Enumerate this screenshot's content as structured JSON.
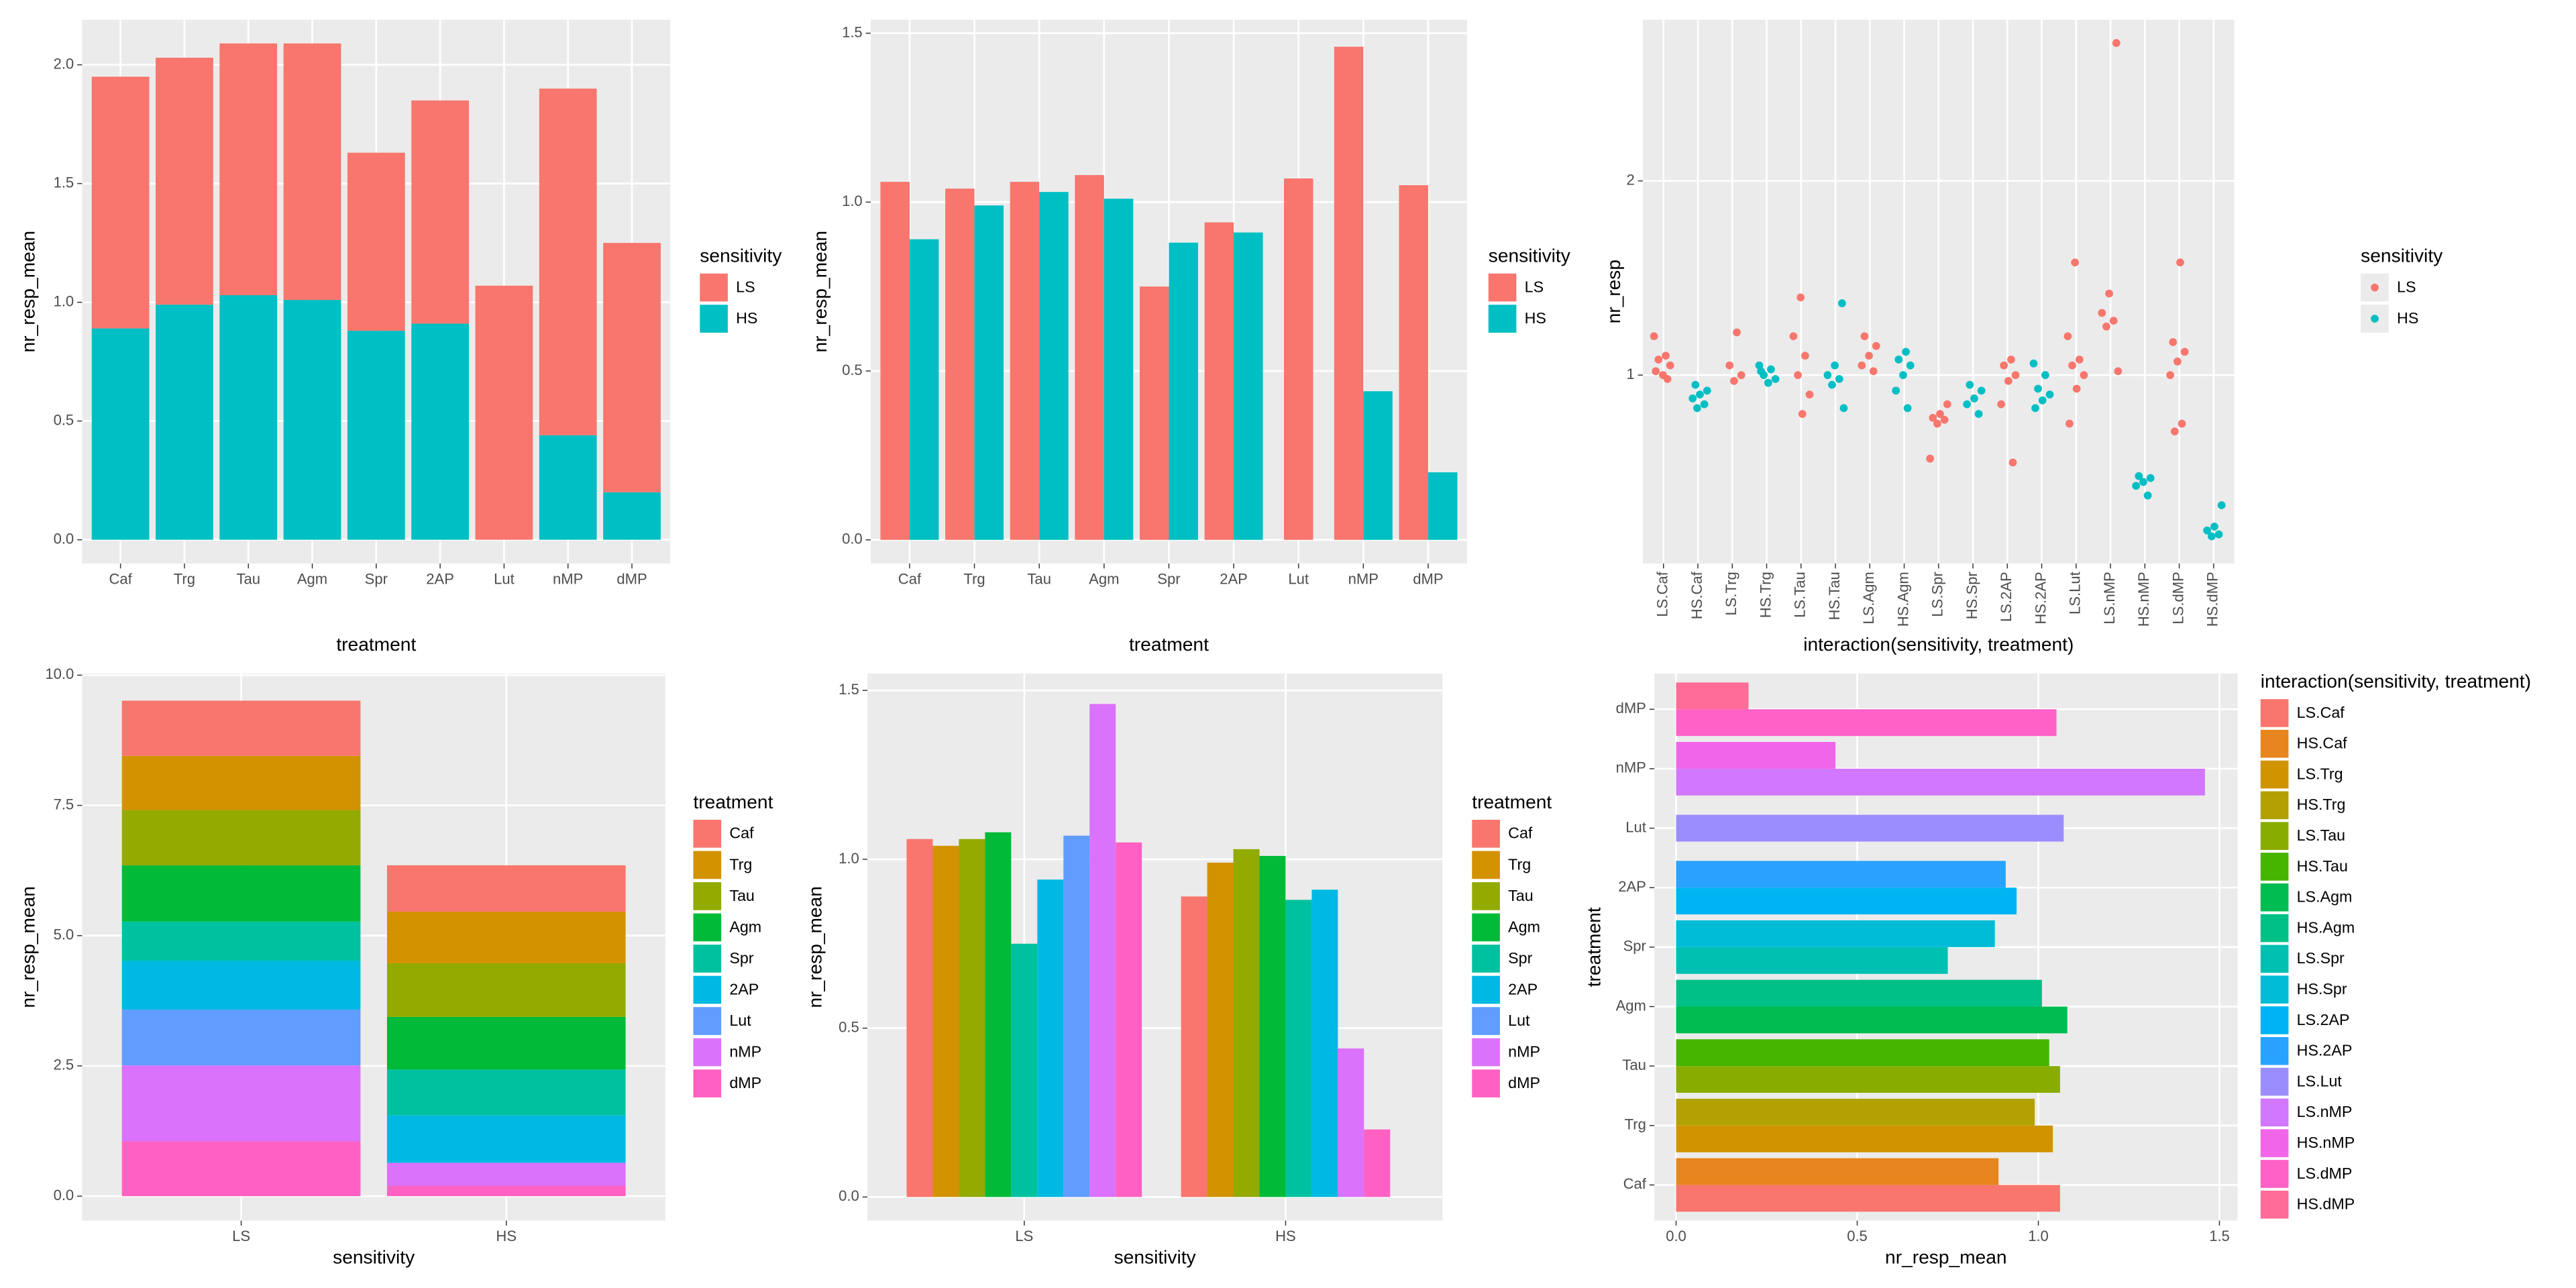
{
  "chart_data": [
    {
      "type": "bar",
      "stacked": true,
      "x_label": "treatment",
      "y_label": "nr_resp_mean",
      "legend_title": "sensitivity",
      "categories": [
        "Caf",
        "Trg",
        "Tau",
        "Agm",
        "Spr",
        "2AP",
        "Lut",
        "nMP",
        "dMP"
      ],
      "series": [
        {
          "name": "LS",
          "color": "#F8766D",
          "values": [
            1.06,
            1.04,
            1.06,
            1.08,
            0.75,
            0.94,
            1.07,
            1.46,
            1.05
          ]
        },
        {
          "name": "HS",
          "color": "#00BFC4",
          "values": [
            0.89,
            0.99,
            1.03,
            1.01,
            0.88,
            0.91,
            null,
            0.44,
            0.2
          ]
        }
      ],
      "ylim": [
        -0.1,
        2.19
      ],
      "yticks": [
        {
          "value": 0,
          "label": "0.0"
        },
        0.5,
        {
          "value": 1,
          "label": "1.0"
        },
        1.5,
        {
          "value": 2,
          "label": "2.0"
        }
      ],
      "grid": true
    },
    {
      "type": "bar",
      "stacked": false,
      "x_label": "treatment",
      "y_label": "nr_resp_mean",
      "legend_title": "sensitivity",
      "categories": [
        "Caf",
        "Trg",
        "Tau",
        "Agm",
        "Spr",
        "2AP",
        "Lut",
        "nMP",
        "dMP"
      ],
      "series": [
        {
          "name": "LS",
          "color": "#F8766D",
          "values": [
            1.06,
            1.04,
            1.06,
            1.08,
            0.75,
            0.94,
            1.07,
            1.46,
            1.05
          ]
        },
        {
          "name": "HS",
          "color": "#00BFC4",
          "values": [
            0.89,
            0.99,
            1.03,
            1.01,
            0.88,
            0.91,
            null,
            0.44,
            0.2
          ]
        }
      ],
      "ylim": [
        -0.07,
        1.54
      ],
      "yticks": [
        {
          "value": 0,
          "label": "0.0"
        },
        0.5,
        {
          "value": 1,
          "label": "1.0"
        },
        1.5
      ],
      "grid": true
    },
    {
      "type": "scatter",
      "x_label": "interaction(sensitivity, treatment)",
      "y_label": "nr_resp",
      "legend_title": "sensitivity",
      "categories": [
        "LS.Caf",
        "HS.Caf",
        "LS.Trg",
        "HS.Trg",
        "LS.Tau",
        "HS.Tau",
        "LS.Agm",
        "HS.Agm",
        "LS.Spr",
        "HS.Spr",
        "LS.2AP",
        "HS.2AP",
        "LS.Lut",
        "LS.nMP",
        "HS.nMP",
        "LS.dMP",
        "HS.dMP"
      ],
      "series": [
        {
          "name": "LS",
          "color": "#F8766D",
          "values": [
            [
              1.2,
              1.1,
              1.08,
              1.05,
              1.0,
              1.02,
              0.98
            ],
            null,
            [
              1.22,
              1.05,
              1.0,
              0.97
            ],
            null,
            [
              1.4,
              1.2,
              1.1,
              1.0,
              0.9,
              0.8
            ],
            null,
            [
              1.2,
              1.15,
              1.1,
              1.05,
              1.02
            ],
            null,
            [
              0.85,
              0.8,
              0.78,
              0.77,
              0.75,
              0.57
            ],
            null,
            [
              1.08,
              1.05,
              1.0,
              0.97,
              0.85,
              0.55
            ],
            null,
            [
              1.58,
              1.2,
              1.08,
              1.05,
              1.0,
              0.93,
              0.75
            ],
            [
              2.71,
              1.42,
              1.32,
              1.28,
              1.25,
              1.02
            ],
            null,
            [
              1.58,
              1.17,
              1.12,
              1.07,
              1.0,
              0.75,
              0.71
            ],
            null
          ]
        },
        {
          "name": "HS",
          "color": "#00BFC4",
          "values": [
            null,
            [
              0.95,
              0.92,
              0.9,
              0.88,
              0.85,
              0.83
            ],
            null,
            [
              1.05,
              1.03,
              1.0,
              0.98,
              0.96,
              1.02
            ],
            null,
            [
              1.37,
              1.05,
              1.0,
              0.98,
              0.95,
              0.83
            ],
            null,
            [
              1.12,
              1.08,
              1.05,
              1.0,
              0.92,
              0.83
            ],
            null,
            [
              0.95,
              0.92,
              0.88,
              0.85,
              0.8
            ],
            null,
            [
              1.06,
              1.0,
              0.93,
              0.9,
              0.87,
              0.83
            ],
            null,
            null,
            [
              0.48,
              0.47,
              0.45,
              0.43,
              0.38
            ],
            null,
            [
              0.33,
              0.22,
              0.2,
              0.18,
              0.17
            ]
          ]
        }
      ],
      "ylim": [
        0.03,
        2.83
      ],
      "yticks": [
        1,
        2
      ],
      "grid": true
    },
    {
      "type": "bar",
      "stacked": true,
      "x_label": "sensitivity",
      "y_label": "nr_resp_mean",
      "legend_title": "treatment",
      "categories": [
        "LS",
        "HS"
      ],
      "series": [
        {
          "name": "Caf",
          "color": "#F8766D",
          "values": [
            1.06,
            0.89
          ]
        },
        {
          "name": "Trg",
          "color": "#D39200",
          "values": [
            1.04,
            0.99
          ]
        },
        {
          "name": "Tau",
          "color": "#93AA00",
          "values": [
            1.06,
            1.03
          ]
        },
        {
          "name": "Agm",
          "color": "#00BA38",
          "values": [
            1.08,
            1.01
          ]
        },
        {
          "name": "Spr",
          "color": "#00C19F",
          "values": [
            0.75,
            0.88
          ]
        },
        {
          "name": "2AP",
          "color": "#00B9E3",
          "values": [
            0.94,
            0.91
          ]
        },
        {
          "name": "Lut",
          "color": "#619CFF",
          "values": [
            1.07,
            null
          ]
        },
        {
          "name": "nMP",
          "color": "#DB72FB",
          "values": [
            1.46,
            0.44
          ]
        },
        {
          "name": "dMP",
          "color": "#FF61C3",
          "values": [
            1.05,
            0.2
          ]
        }
      ],
      "ylim": [
        -0.47,
        10.03
      ],
      "yticks": [
        {
          "value": 0,
          "label": "0.0"
        },
        2.5,
        {
          "value": 5,
          "label": "5.0"
        },
        7.5,
        {
          "value": 10,
          "label": "10.0"
        }
      ],
      "grid": true
    },
    {
      "type": "bar",
      "stacked": false,
      "x_label": "sensitivity",
      "y_label": "nr_resp_mean",
      "legend_title": "treatment",
      "categories": [
        "LS",
        "HS"
      ],
      "series": [
        {
          "name": "Caf",
          "color": "#F8766D",
          "values": [
            1.06,
            0.89
          ]
        },
        {
          "name": "Trg",
          "color": "#D39200",
          "values": [
            1.04,
            0.99
          ]
        },
        {
          "name": "Tau",
          "color": "#93AA00",
          "values": [
            1.06,
            1.03
          ]
        },
        {
          "name": "Agm",
          "color": "#00BA38",
          "values": [
            1.08,
            1.01
          ]
        },
        {
          "name": "Spr",
          "color": "#00C19F",
          "values": [
            0.75,
            0.88
          ]
        },
        {
          "name": "2AP",
          "color": "#00B9E3",
          "values": [
            0.94,
            0.91
          ]
        },
        {
          "name": "Lut",
          "color": "#619CFF",
          "values": [
            1.07,
            null
          ]
        },
        {
          "name": "nMP",
          "color": "#DB72FB",
          "values": [
            1.46,
            0.44
          ]
        },
        {
          "name": "dMP",
          "color": "#FF61C3",
          "values": [
            1.05,
            0.2
          ]
        }
      ],
      "ylim": [
        -0.07,
        1.55
      ],
      "yticks": [
        {
          "value": 0,
          "label": "0.0"
        },
        0.5,
        {
          "value": 1,
          "label": "1.0"
        },
        1.5
      ],
      "grid": true
    },
    {
      "type": "bar",
      "stacked": false,
      "orientation": "horizontal",
      "x_label": "nr_resp_mean",
      "y_label": "treatment",
      "legend_title": "interaction(sensitivity, treatment)",
      "categories": [
        "Caf",
        "Trg",
        "Tau",
        "Agm",
        "Spr",
        "2AP",
        "Lut",
        "nMP",
        "dMP"
      ],
      "series": [
        {
          "name": "LS.Caf",
          "color": "#F8766D",
          "values": [
            1.06,
            null,
            null,
            null,
            null,
            null,
            null,
            null,
            null
          ]
        },
        {
          "name": "HS.Caf",
          "color": "#E7851E",
          "values": [
            0.89,
            null,
            null,
            null,
            null,
            null,
            null,
            null,
            null
          ]
        },
        {
          "name": "LS.Trg",
          "color": "#D09400",
          "values": [
            null,
            1.04,
            null,
            null,
            null,
            null,
            null,
            null,
            null
          ]
        },
        {
          "name": "HS.Trg",
          "color": "#B2A100",
          "values": [
            null,
            0.99,
            null,
            null,
            null,
            null,
            null,
            null,
            null
          ]
        },
        {
          "name": "LS.Tau",
          "color": "#89AC00",
          "values": [
            null,
            null,
            1.06,
            null,
            null,
            null,
            null,
            null,
            null
          ]
        },
        {
          "name": "HS.Tau",
          "color": "#45B500",
          "values": [
            null,
            null,
            1.03,
            null,
            null,
            null,
            null,
            null,
            null
          ]
        },
        {
          "name": "LS.Agm",
          "color": "#00BC51",
          "values": [
            null,
            null,
            null,
            1.08,
            null,
            null,
            null,
            null,
            null
          ]
        },
        {
          "name": "HS.Agm",
          "color": "#00C087",
          "values": [
            null,
            null,
            null,
            1.01,
            null,
            null,
            null,
            null,
            null
          ]
        },
        {
          "name": "LS.Spr",
          "color": "#00C0B2",
          "values": [
            null,
            null,
            null,
            null,
            0.75,
            null,
            null,
            null,
            null
          ]
        },
        {
          "name": "HS.Spr",
          "color": "#00BCD6",
          "values": [
            null,
            null,
            null,
            null,
            0.88,
            null,
            null,
            null,
            null
          ]
        },
        {
          "name": "LS.2AP",
          "color": "#00B3F2",
          "values": [
            null,
            null,
            null,
            null,
            null,
            0.94,
            null,
            null,
            null
          ]
        },
        {
          "name": "HS.2AP",
          "color": "#29A3FF",
          "values": [
            null,
            null,
            null,
            null,
            null,
            0.91,
            null,
            null,
            null
          ]
        },
        {
          "name": "LS.Lut",
          "color": "#9C8DFF",
          "values": [
            null,
            null,
            null,
            null,
            null,
            null,
            1.07,
            null,
            null
          ]
        },
        {
          "name": "LS.nMP",
          "color": "#D277FF",
          "values": [
            null,
            null,
            null,
            null,
            null,
            null,
            null,
            1.46,
            null
          ]
        },
        {
          "name": "HS.nMP",
          "color": "#F166E8",
          "values": [
            null,
            null,
            null,
            null,
            null,
            null,
            null,
            0.44,
            null
          ]
        },
        {
          "name": "LS.dMP",
          "color": "#FF61C7",
          "values": [
            null,
            null,
            null,
            null,
            null,
            null,
            null,
            null,
            1.05
          ]
        },
        {
          "name": "HS.dMP",
          "color": "#FF6C98",
          "values": [
            null,
            null,
            null,
            null,
            null,
            null,
            null,
            null,
            0.2
          ]
        }
      ],
      "xlim": [
        -0.06,
        1.55
      ],
      "xticks": [
        {
          "value": 0,
          "label": "0.0"
        },
        0.5,
        {
          "value": 1,
          "label": "1.0"
        },
        1.5
      ],
      "grid": true
    }
  ]
}
